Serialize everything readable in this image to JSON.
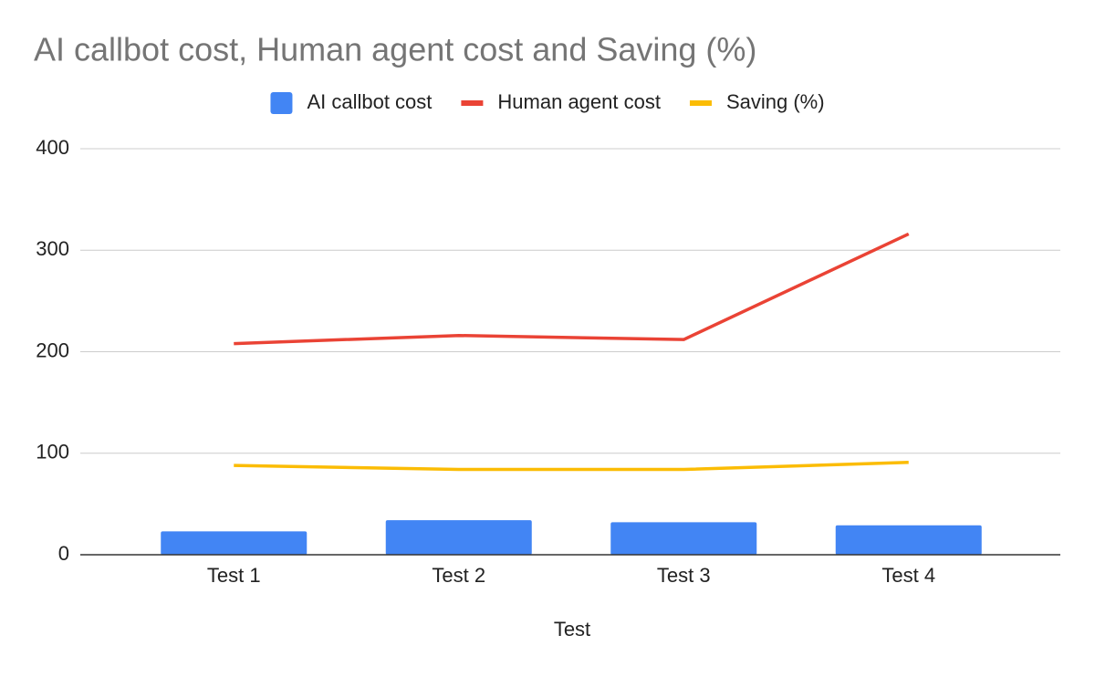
{
  "chart_data": {
    "type": "combo",
    "title": "AI callbot cost, Human agent cost and Saving (%)",
    "x_label": "Test",
    "categories": [
      "Test 1",
      "Test 2",
      "Test 3",
      "Test 4"
    ],
    "series": [
      {
        "name": "AI callbot cost",
        "type": "bar",
        "color": "#4285f4",
        "values": [
          23,
          34,
          32,
          29
        ]
      },
      {
        "name": "Human agent cost",
        "type": "line",
        "color": "#ea4335",
        "values": [
          208,
          216,
          212,
          316
        ]
      },
      {
        "name": "Saving (%)",
        "type": "line",
        "color": "#fbbc04",
        "values": [
          88,
          84,
          84,
          91
        ]
      }
    ],
    "ylim": [
      0,
      400
    ],
    "yticks": [
      0,
      100,
      200,
      300,
      400
    ],
    "grid": true,
    "legend": "top"
  }
}
